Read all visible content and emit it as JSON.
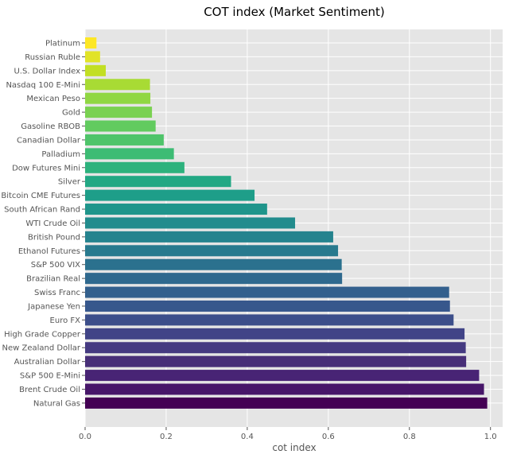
{
  "chart_data": {
    "type": "bar",
    "orientation": "horizontal",
    "title": "COT index (Market Sentiment)",
    "xlabel": "cot index",
    "ylabel": "",
    "xlim": [
      0,
      1.03
    ],
    "xticks": [
      0.0,
      0.2,
      0.4,
      0.6,
      0.8,
      1.0
    ],
    "xtick_labels": [
      "0.0",
      "0.2",
      "0.4",
      "0.6",
      "0.8",
      "1.0"
    ],
    "grid": true,
    "background": "#e5e5e5",
    "colormap": "viridis",
    "categories": [
      "Platinum",
      "Russian Ruble",
      "U.S. Dollar Index",
      "Nasdaq 100 E-Mini",
      "Mexican Peso",
      "Gold",
      "Gasoline RBOB",
      "Canadian Dollar",
      "Palladium",
      "Dow Futures Mini",
      "Silver",
      "Bitcoin CME Futures",
      "South African Rand",
      "WTI Crude Oil",
      "British Pound",
      "Ethanol Futures",
      "S&P 500 VIX",
      "Brazilian Real",
      "Swiss Franc",
      "Japanese Yen",
      "Euro FX",
      "High Grade Copper",
      "New Zealand Dollar",
      "Australian Dollar",
      "S&P 500 E-Mini",
      "Brent Crude Oil",
      "Natural Gas"
    ],
    "values": [
      0.028,
      0.037,
      0.051,
      0.16,
      0.161,
      0.165,
      0.174,
      0.194,
      0.219,
      0.245,
      0.36,
      0.418,
      0.449,
      0.518,
      0.612,
      0.624,
      0.633,
      0.634,
      0.898,
      0.9,
      0.909,
      0.936,
      0.939,
      0.94,
      0.972,
      0.984,
      0.992
    ],
    "colors": [
      "#fde725",
      "#e1e327",
      "#c2df23",
      "#a8db34",
      "#90d743",
      "#7ad151",
      "#62cb5f",
      "#4fc46a",
      "#3dbc74",
      "#2db27d",
      "#22a884",
      "#1e9e89",
      "#1f958b",
      "#228c8d",
      "#25838e",
      "#287a8e",
      "#2b718e",
      "#2f698e",
      "#33608d",
      "#37578c",
      "#3c4e8a",
      "#414487",
      "#453a81",
      "#482f78",
      "#482475",
      "#471669",
      "#440154"
    ]
  }
}
